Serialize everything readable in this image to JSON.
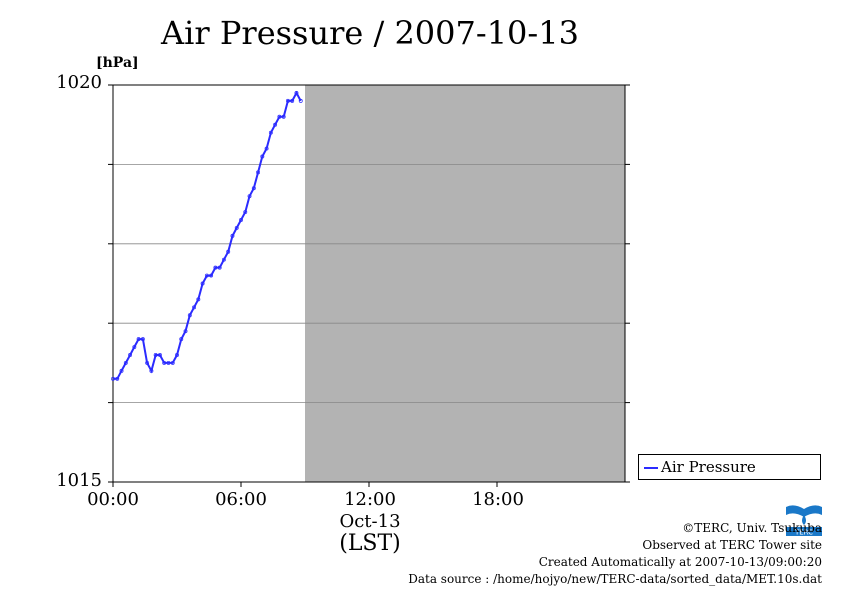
{
  "title": "Air Pressure / 2007-10-13",
  "unit_label": "[hPa]",
  "y_ticks": [
    "1020",
    "1015"
  ],
  "x_ticks": [
    "00:00",
    "06:00",
    "12:00",
    "18:00"
  ],
  "x_date_label": "Oct-13",
  "x_unit_label": "(LST)",
  "legend_label": "Air Pressure",
  "footer": {
    "copyright": "©TERC, Univ. Tsukuba",
    "observed": "Observed at TERC Tower site",
    "created": "Created Automatically at 2007-10-13/09:00:20",
    "source": "Data source : /home/hojyo/new/TERC-data/sorted_data/MET.10s.dat"
  },
  "logo_text": "TERC",
  "colors": {
    "series": "#2b2bff",
    "no_data": "#b3b3b3",
    "grid": "#888888"
  },
  "chart_data": {
    "type": "line",
    "title": "Air Pressure / 2007-10-13",
    "xlabel": "(LST)",
    "ylabel": "[hPa]",
    "xlim": [
      0,
      24
    ],
    "ylim": [
      1015,
      1020
    ],
    "yticks": [
      1015,
      1016,
      1017,
      1018,
      1019,
      1020
    ],
    "grid": true,
    "legend": "outside-right",
    "no_data_from": 9.0,
    "series": [
      {
        "name": "Air Pressure",
        "x": [
          0.0,
          0.2,
          0.4,
          0.6,
          0.8,
          1.0,
          1.2,
          1.4,
          1.6,
          1.8,
          2.0,
          2.2,
          2.4,
          2.6,
          2.8,
          3.0,
          3.2,
          3.4,
          3.6,
          3.8,
          4.0,
          4.2,
          4.4,
          4.6,
          4.8,
          5.0,
          5.2,
          5.4,
          5.6,
          5.8,
          6.0,
          6.2,
          6.4,
          6.6,
          6.8,
          7.0,
          7.2,
          7.4,
          7.6,
          7.8,
          8.0,
          8.2,
          8.4,
          8.6,
          8.8
        ],
        "y": [
          1016.3,
          1016.3,
          1016.4,
          1016.5,
          1016.6,
          1016.7,
          1016.8,
          1016.8,
          1016.5,
          1016.4,
          1016.6,
          1016.6,
          1016.5,
          1016.5,
          1016.5,
          1016.6,
          1016.8,
          1016.9,
          1017.1,
          1017.2,
          1017.3,
          1017.5,
          1017.6,
          1017.6,
          1017.7,
          1017.7,
          1017.8,
          1017.9,
          1018.1,
          1018.2,
          1018.3,
          1018.4,
          1018.6,
          1018.7,
          1018.9,
          1019.1,
          1019.2,
          1019.4,
          1019.5,
          1019.6,
          1019.6,
          1019.8,
          1019.8,
          1019.9,
          1019.8
        ]
      }
    ]
  }
}
